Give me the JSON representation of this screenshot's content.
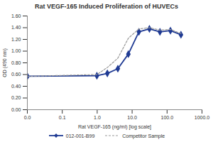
{
  "chart_data": {
    "type": "line",
    "title": "Rat VEGF-165 Induced Proliferation of HUVECs",
    "x_label": "Rat VEGF-165 (ng/ml) [log scale]",
    "y_label": "OD (490 nm)",
    "log": "x",
    "grid": false,
    "legend": "bottom",
    "x": [
      0.01,
      0.98,
      1.95,
      3.9,
      7.8,
      15.6,
      31.25,
      62.5,
      125,
      250
    ],
    "series": [
      {
        "name": "012-001-B99",
        "color": "#1f3a93",
        "marker": "diamond",
        "line_style": "solid",
        "values": [
          0.57,
          0.58,
          0.62,
          0.7,
          0.95,
          1.33,
          1.38,
          1.33,
          1.35,
          1.28
        ]
      },
      {
        "name": "Competitor Sample",
        "color": "#9a9a9a",
        "marker": "none",
        "line_style": "dashed",
        "values": [
          0.57,
          0.6,
          0.72,
          0.88,
          1.22,
          1.38,
          1.4,
          1.36,
          1.37,
          1.3
        ]
      }
    ],
    "xlim": [
      0.01,
      1000
    ],
    "xticks": [
      {
        "value": 0.01,
        "label": "0.0"
      },
      {
        "value": 0.1,
        "label": "0.1"
      },
      {
        "value": 1,
        "label": "1.0"
      },
      {
        "value": 10,
        "label": "10.0"
      },
      {
        "value": 100,
        "label": "100.0"
      },
      {
        "value": 1000,
        "label": "1000.0"
      }
    ],
    "ylim": [
      0,
      1.6
    ],
    "yticks": [
      {
        "value": 0,
        "label": "0.00"
      },
      {
        "value": 0.2,
        "label": "0.20"
      },
      {
        "value": 0.4,
        "label": "0.40"
      },
      {
        "value": 0.6,
        "label": "0.60"
      },
      {
        "value": 0.8,
        "label": "0.80"
      },
      {
        "value": 1.0,
        "label": "1.00"
      },
      {
        "value": 1.2,
        "label": "1.20"
      },
      {
        "value": 1.4,
        "label": "1.40"
      },
      {
        "value": 1.6,
        "label": "1.60"
      }
    ]
  }
}
